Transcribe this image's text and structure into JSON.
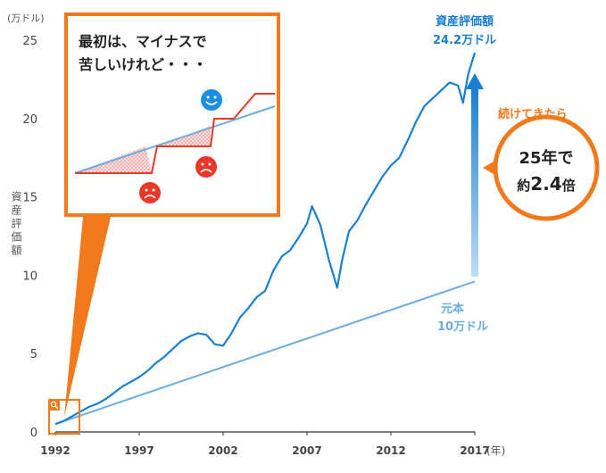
{
  "chart_data": {
    "type": "line",
    "y_unit_label": "(万ドル)",
    "ylabel": "資産評価額",
    "x_unit_label": "(年)",
    "xlim": [
      1992,
      2017
    ],
    "ylim": [
      0,
      25
    ],
    "x_ticks": [
      1992,
      1997,
      2002,
      2007,
      2012,
      2017
    ],
    "y_ticks": [
      0,
      5,
      10,
      15,
      20,
      25
    ],
    "series": [
      {
        "name": "資産評価額",
        "color": "#1a7fd0",
        "x": [
          1992.0,
          1992.5,
          1993.0,
          1993.5,
          1994.0,
          1994.5,
          1995.0,
          1995.5,
          1996.0,
          1996.5,
          1997.0,
          1997.5,
          1998.0,
          1998.5,
          1999.0,
          1999.5,
          2000.0,
          2000.5,
          2001.0,
          2001.5,
          2002.0,
          2002.5,
          2003.0,
          2003.5,
          2004.0,
          2004.5,
          2005.0,
          2005.5,
          2006.0,
          2006.5,
          2007.0,
          2007.3,
          2007.8,
          2008.3,
          2008.8,
          2009.1,
          2009.5,
          2010.0,
          2010.5,
          2011.0,
          2011.5,
          2012.0,
          2012.5,
          2013.0,
          2013.5,
          2014.0,
          2014.5,
          2015.0,
          2015.5,
          2016.0,
          2016.3,
          2016.6,
          2017.0
        ],
        "y": [
          0.5,
          0.7,
          1.0,
          1.3,
          1.6,
          1.8,
          2.1,
          2.5,
          2.9,
          3.2,
          3.5,
          3.9,
          4.4,
          4.8,
          5.3,
          5.8,
          6.1,
          6.3,
          6.2,
          5.6,
          5.5,
          6.3,
          7.3,
          7.9,
          8.6,
          9.0,
          10.3,
          11.2,
          11.6,
          12.4,
          13.3,
          14.4,
          13.2,
          11.0,
          9.2,
          11.0,
          12.8,
          13.5,
          14.5,
          15.4,
          16.3,
          17.0,
          17.5,
          18.6,
          19.8,
          20.8,
          21.3,
          21.8,
          22.3,
          22.1,
          21.0,
          22.8,
          24.2
        ]
      },
      {
        "name": "元本",
        "color": "#6aaee0",
        "x": [
          1992,
          2017
        ],
        "y": [
          0.5,
          9.6
        ]
      }
    ],
    "annotations": {
      "asset_label_1": "資産評価額",
      "asset_label_2": "24.2万ドル",
      "principal_label_1": "元本",
      "principal_label_2": "10万ドル",
      "tag_text": "続けてきたら",
      "bubble_line1": "25年で",
      "bubble_line2_prefix": "約",
      "bubble_line2_value": "2.4",
      "bubble_line2_suffix": "倍",
      "inset_line1": "最初は、マイナスで",
      "inset_line2": "苦しいけれど・・・"
    },
    "colors": {
      "asset": "#1a7fd0",
      "principal": "#6aaee0",
      "accent_orange": "#f07a1c",
      "smile": "#1e8fe0",
      "frown": "#e83828",
      "loss_fill": "#f4b8b8"
    }
  }
}
